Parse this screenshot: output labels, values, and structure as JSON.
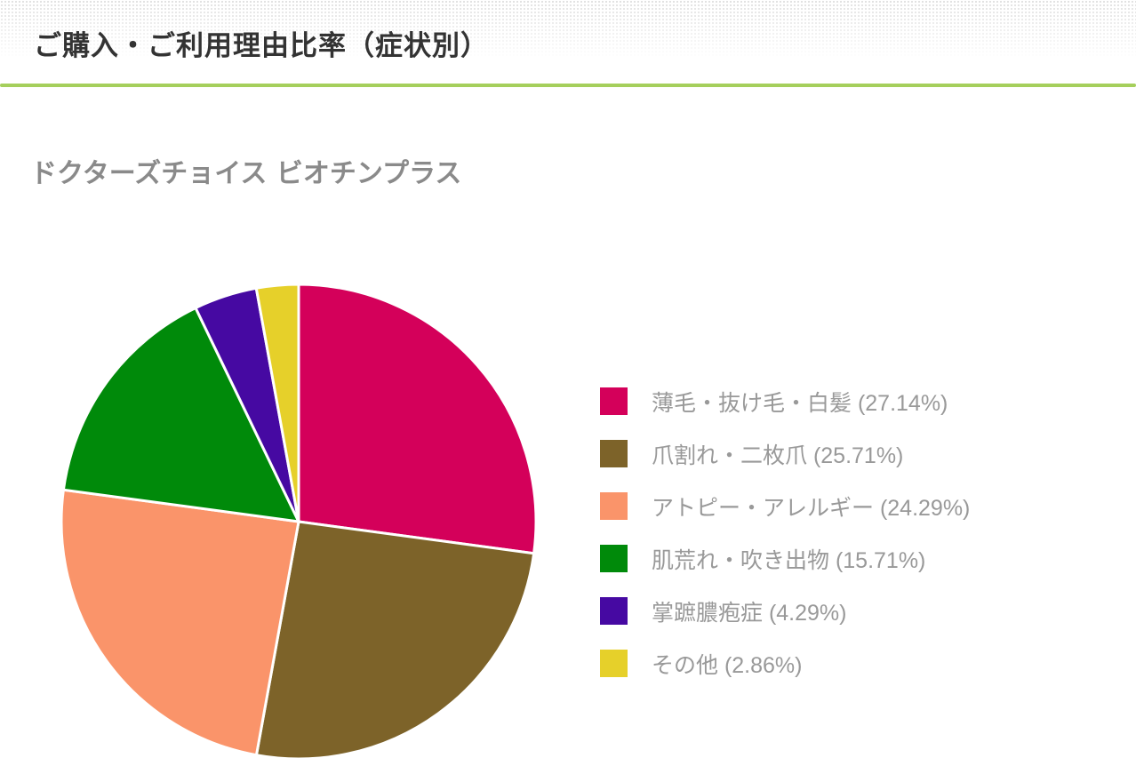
{
  "header": {
    "title": "ご購入・ご利用理由比率（症状別）"
  },
  "chart_data": {
    "type": "pie",
    "title": "ドクターズチョイス ビオチンプラス",
    "legend_position": "right",
    "slices": [
      {
        "label": "薄毛・抜け毛・白髪",
        "value": 27.14,
        "display": "薄毛・抜け毛・白髪 (27.14%)",
        "color": "#d4005a"
      },
      {
        "label": "爪割れ・二枚爪",
        "value": 25.71,
        "display": "爪割れ・二枚爪 (25.71%)",
        "color": "#7d6329"
      },
      {
        "label": "アトピー・アレルギー",
        "value": 24.29,
        "display": "アトピー・アレルギー (24.29%)",
        "color": "#fa946a"
      },
      {
        "label": "肌荒れ・吹き出物",
        "value": 15.71,
        "display": "肌荒れ・吹き出物 (15.71%)",
        "color": "#008a0a"
      },
      {
        "label": "掌蹠膿疱症",
        "value": 4.29,
        "display": "掌蹠膿疱症 (4.29%)",
        "color": "#4609a2"
      },
      {
        "label": "その他",
        "value": 2.86,
        "display": "その他 (2.86%)",
        "color": "#e6d02a"
      }
    ]
  }
}
